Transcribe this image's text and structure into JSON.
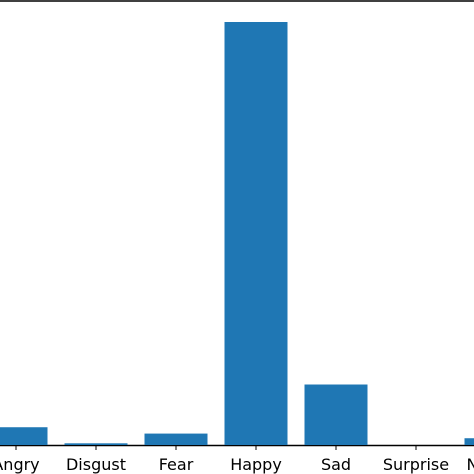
{
  "chart_data": {
    "type": "bar",
    "categories": [
      "Angry",
      "Disgust",
      "Fear",
      "Happy",
      "Sad",
      "Surprise",
      "Neutral"
    ],
    "values": [
      0.042,
      0.004,
      0.027,
      1.0,
      0.143,
      0.0,
      0.016
    ],
    "ylim": [
      0,
      1.0
    ],
    "grid": false,
    "title": "",
    "xlabel": "",
    "ylabel": "",
    "bar_color": "#1f77b4"
  }
}
